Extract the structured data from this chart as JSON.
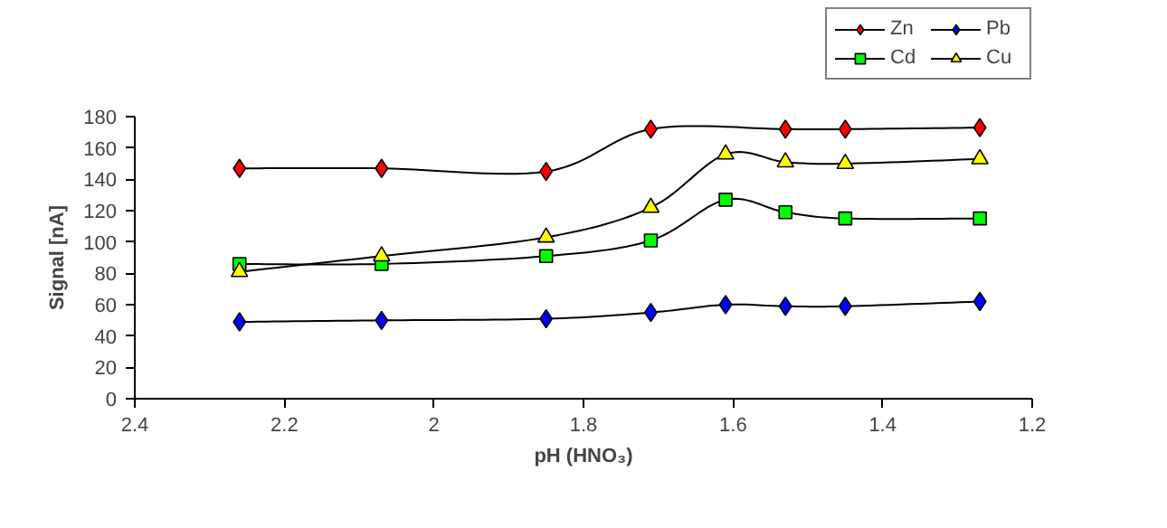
{
  "chart_data": {
    "type": "line",
    "xlabel": "pH (HNO₃)",
    "ylabel": "Signal [nA]",
    "xlim": [
      2.4,
      1.2
    ],
    "xticks": [
      {
        "value": 2.4,
        "label": "2.4"
      },
      {
        "value": 2.2,
        "label": "2.2"
      },
      {
        "value": 2,
        "label": "2"
      },
      {
        "value": 1.8,
        "label": "1.8"
      },
      {
        "value": 1.6,
        "label": "1.6"
      },
      {
        "value": 1.4,
        "label": "1.4"
      },
      {
        "value": 1.2,
        "label": "1.2"
      }
    ],
    "ylim": [
      0,
      180
    ],
    "yticks": [
      0,
      20,
      40,
      60,
      80,
      100,
      120,
      140,
      160,
      180
    ],
    "grid": false,
    "legend": "top right",
    "series": [
      {
        "name": "Zn",
        "color": "#ff0000",
        "marker": "diamond",
        "x": [
          2.26,
          2.07,
          1.85,
          1.71,
          1.53,
          1.45,
          1.27
        ],
        "values": [
          147,
          147,
          145,
          172,
          172,
          172,
          173
        ]
      },
      {
        "name": "Pb",
        "color": "#0000ff",
        "marker": "diamond",
        "x": [
          2.26,
          2.07,
          1.85,
          1.71,
          1.61,
          1.53,
          1.45,
          1.27
        ],
        "values": [
          49,
          50,
          51,
          55,
          60,
          59,
          59,
          62
        ]
      },
      {
        "name": "Cd",
        "color": "#00ff00",
        "marker": "square",
        "x": [
          2.26,
          2.07,
          1.85,
          1.71,
          1.61,
          1.53,
          1.45,
          1.27
        ],
        "values": [
          86,
          86,
          91,
          101,
          127,
          119,
          115,
          115
        ]
      },
      {
        "name": "Cu",
        "color": "#ffff00",
        "marker": "triangle",
        "x": [
          2.26,
          2.07,
          1.85,
          1.71,
          1.61,
          1.53,
          1.45,
          1.27
        ],
        "values": [
          81,
          91,
          103,
          122,
          156,
          151,
          150,
          153
        ]
      }
    ]
  }
}
